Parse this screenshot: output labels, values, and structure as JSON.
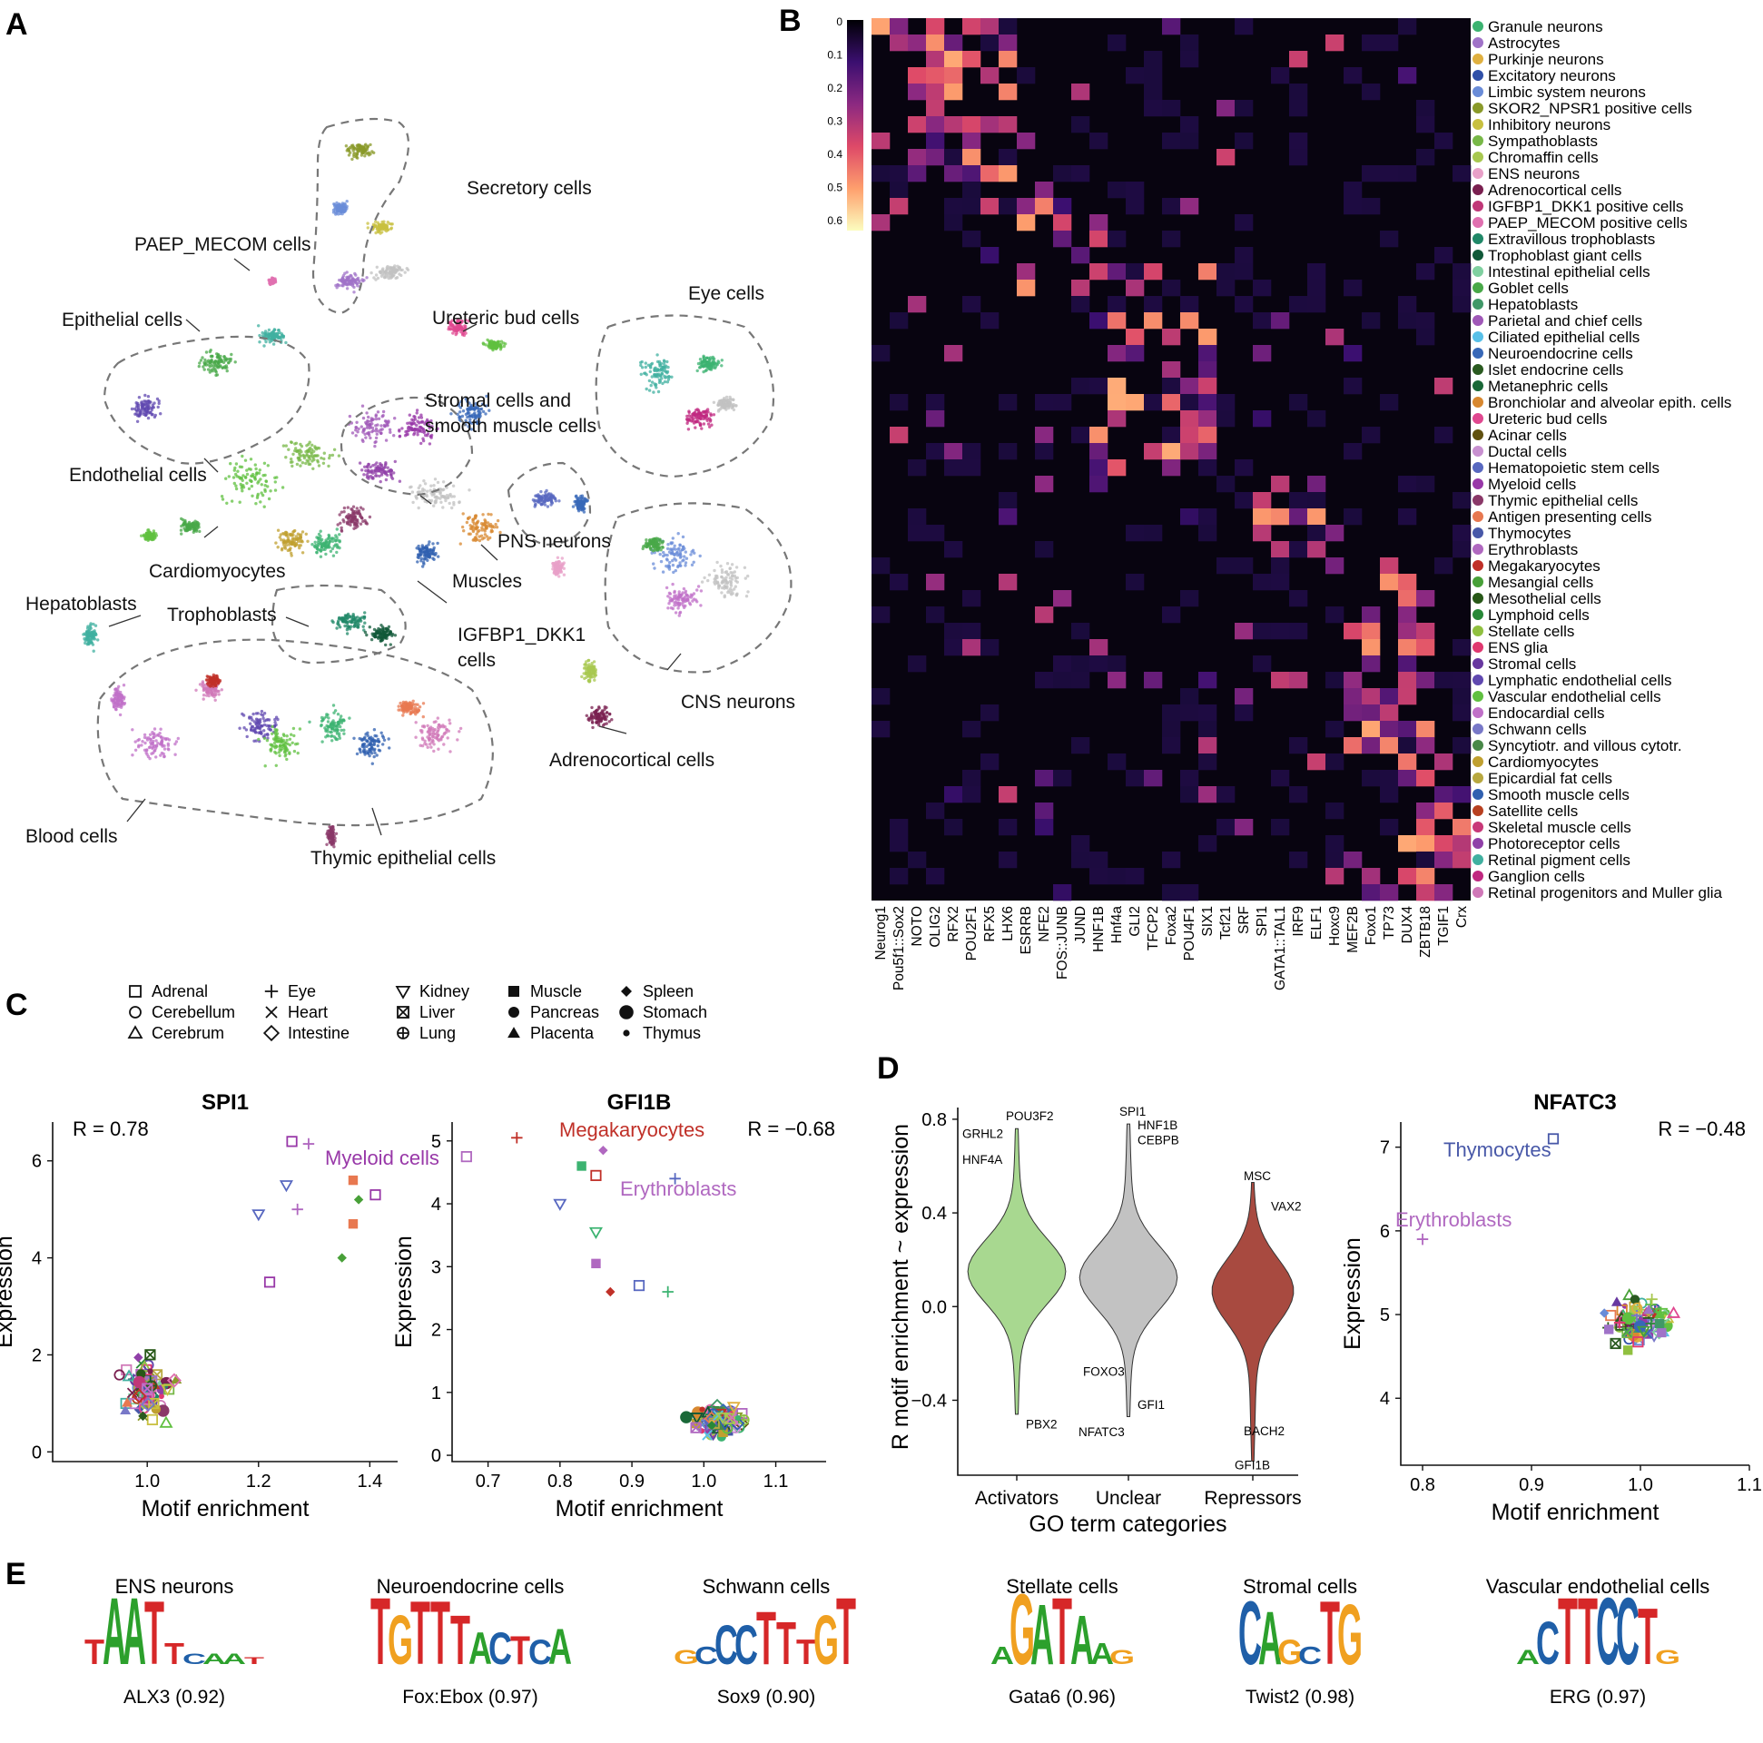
{
  "panel_letters": [
    "A",
    "B",
    "C",
    "D",
    "E"
  ],
  "panel_a": {
    "labels": [
      "Secretory cells",
      "PAEP_MECOM cells",
      "Epithelial cells",
      "Ureteric bud cells",
      "Eye cells",
      "Stromal cells and",
      "smooth muscle cells",
      "Endothelial cells",
      "PNS neurons",
      "Cardiomyocytes",
      "Muscles",
      "Hepatoblasts",
      "Trophoblasts",
      "IGFBP1_DKK1",
      "cells",
      "CNS neurons",
      "Adrenocortical cells",
      "Blood cells",
      "Thymic epithelial cells"
    ]
  },
  "panel_b": {
    "scale_ticks": [
      "0",
      "0.1",
      "0.2",
      "0.3",
      "0.4",
      "0.5",
      "0.6"
    ],
    "tfs": [
      "Neurog1",
      "Pou5f1::Sox2",
      "NOTO",
      "OLIG2",
      "RFX2",
      "POU2F1",
      "RFX5",
      "LHX6",
      "ESRRB",
      "NFE2",
      "FOS::JUNB",
      "JUND",
      "HNF1B",
      "Hnf4a",
      "GLI2",
      "TFCP2",
      "Foxa2",
      "POU4F1",
      "SIX1",
      "Tcf21",
      "SRF",
      "SPI1",
      "GATA1::TAL1",
      "IRF9",
      "ELF1",
      "Hoxc9",
      "MEF2B",
      "Foxo1",
      "TP73",
      "DUX4",
      "ZBTB18",
      "TGIF1",
      "Crx"
    ],
    "cell_types": [
      {
        "name": "Granule neurons",
        "color": "#3cb371"
      },
      {
        "name": "Astrocytes",
        "color": "#a073c8"
      },
      {
        "name": "Purkinje neurons",
        "color": "#e0b040"
      },
      {
        "name": "Excitatory neurons",
        "color": "#3050a8"
      },
      {
        "name": "Limbic system neurons",
        "color": "#6a8cd8"
      },
      {
        "name": "SKOR2_NPSR1 positive cells",
        "color": "#8a9a2a"
      },
      {
        "name": "Inhibitory neurons",
        "color": "#c8c040"
      },
      {
        "name": "Sympathoblasts",
        "color": "#78b848"
      },
      {
        "name": "Chromaffin cells",
        "color": "#a8c850"
      },
      {
        "name": "ENS neurons",
        "color": "#e8a0c8"
      },
      {
        "name": "Adrenocortical cells",
        "color": "#7a2050"
      },
      {
        "name": "IGFBP1_DKK1 positive cells",
        "color": "#c03878"
      },
      {
        "name": "PAEP_MECOM positive cells",
        "color": "#e070b0"
      },
      {
        "name": "Extravillous trophoblasts",
        "color": "#208868"
      },
      {
        "name": "Trophoblast giant cells",
        "color": "#105838"
      },
      {
        "name": "Intestinal epithelial cells",
        "color": "#80d0a0"
      },
      {
        "name": "Goblet cells",
        "color": "#48a848"
      },
      {
        "name": "Hepatoblasts",
        "color": "#409868"
      },
      {
        "name": "Parietal and chief cells",
        "color": "#a058b8"
      },
      {
        "name": "Ciliated epithelial cells",
        "color": "#58c0e8"
      },
      {
        "name": "Neuroendocrine cells",
        "color": "#3868b8"
      },
      {
        "name": "Islet endocrine cells",
        "color": "#2a5a20"
      },
      {
        "name": "Metanephric cells",
        "color": "#1a6838"
      },
      {
        "name": "Bronchiolar and alveolar epith. cells",
        "color": "#d88830"
      },
      {
        "name": "Ureteric bud cells",
        "color": "#e04890"
      },
      {
        "name": "Acinar cells",
        "color": "#605010"
      },
      {
        "name": "Ductal cells",
        "color": "#c890d0"
      },
      {
        "name": "Hematopoietic stem cells",
        "color": "#5868c0"
      },
      {
        "name": "Myeloid cells",
        "color": "#9838a8"
      },
      {
        "name": "Thymic epithelial cells",
        "color": "#8a3868"
      },
      {
        "name": "Antigen presenting cells",
        "color": "#e87850"
      },
      {
        "name": "Thymocytes",
        "color": "#4858a8"
      },
      {
        "name": "Erythroblasts",
        "color": "#b068c0"
      },
      {
        "name": "Megakaryocytes",
        "color": "#c03028"
      },
      {
        "name": "Mesangial cells",
        "color": "#48a038"
      },
      {
        "name": "Mesothelial cells",
        "color": "#285818"
      },
      {
        "name": "Lymphoid cells",
        "color": "#288838"
      },
      {
        "name": "Stellate cells",
        "color": "#90c040"
      },
      {
        "name": "ENS glia",
        "color": "#e03870"
      },
      {
        "name": "Stromal cells",
        "color": "#6838a0"
      },
      {
        "name": "Lymphatic endothelial cells",
        "color": "#6048b0"
      },
      {
        "name": "Vascular endothelial cells",
        "color": "#60c040"
      },
      {
        "name": "Endocardial cells",
        "color": "#c070c8"
      },
      {
        "name": "Schwann cells",
        "color": "#7878c8"
      },
      {
        "name": "Syncytiotr. and villous cytotr.",
        "color": "#488848"
      },
      {
        "name": "Cardiomyocytes",
        "color": "#c0a030"
      },
      {
        "name": "Epicardial fat cells",
        "color": "#b8a840"
      },
      {
        "name": "Smooth muscle cells",
        "color": "#3060b0"
      },
      {
        "name": "Satellite cells",
        "color": "#b84020"
      },
      {
        "name": "Skeletal muscle cells",
        "color": "#c83878"
      },
      {
        "name": "Photoreceptor cells",
        "color": "#9040a8"
      },
      {
        "name": "Retinal pigment cells",
        "color": "#40b0a0"
      },
      {
        "name": "Ganglion cells",
        "color": "#c02880"
      },
      {
        "name": "Retinal progenitors and Muller glia",
        "color": "#d078b8"
      }
    ]
  },
  "panel_c": {
    "legend": [
      {
        "symbol": "square-open",
        "label": "Adrenal"
      },
      {
        "symbol": "circle-open",
        "label": "Cerebellum"
      },
      {
        "symbol": "triangle-open",
        "label": "Cerebrum"
      },
      {
        "symbol": "plus",
        "label": "Eye"
      },
      {
        "symbol": "cross",
        "label": "Heart"
      },
      {
        "symbol": "diamond-open",
        "label": "Intestine"
      },
      {
        "symbol": "triangle-down-open",
        "label": "Kidney"
      },
      {
        "symbol": "square-x",
        "label": "Liver"
      },
      {
        "symbol": "circle-plus",
        "label": "Lung"
      },
      {
        "symbol": "square-filled",
        "label": "Muscle"
      },
      {
        "symbol": "circle-filled",
        "label": "Pancreas"
      },
      {
        "symbol": "triangle-filled",
        "label": "Placenta"
      },
      {
        "symbol": "diamond-filled",
        "label": "Spleen"
      },
      {
        "symbol": "circle-large",
        "label": "Stomach"
      },
      {
        "symbol": "circle-small",
        "label": "Thymus"
      }
    ]
  },
  "chart_data": [
    {
      "type": "scatter",
      "title": "SPI1",
      "xlabel": "Motif enrichment",
      "ylabel": "Expression",
      "xlim": [
        0.83,
        1.45
      ],
      "ylim": [
        -0.2,
        6.8
      ],
      "xticks": [
        "1.0",
        "1.2",
        "1.4"
      ],
      "yticks": [
        "0",
        "2",
        "4",
        "6"
      ],
      "annotation": "R = 0.78",
      "labels": [
        {
          "text": "Myeloid cells",
          "color": "#9838a8"
        }
      ],
      "highlight": [
        [
          1.26,
          6.4
        ],
        [
          1.29,
          6.35
        ],
        [
          1.25,
          5.5
        ],
        [
          1.37,
          5.6
        ],
        [
          1.38,
          5.2
        ],
        [
          1.41,
          5.3
        ],
        [
          1.27,
          5.0
        ],
        [
          1.2,
          4.9
        ],
        [
          1.37,
          4.7
        ],
        [
          1.35,
          4.0
        ],
        [
          1.22,
          3.5
        ]
      ]
    },
    {
      "type": "scatter",
      "title": "GFI1B",
      "xlabel": "Motif enrichment",
      "ylabel": "Expression",
      "xlim": [
        0.65,
        1.17
      ],
      "ylim": [
        -0.1,
        5.3
      ],
      "xticks": [
        "0.7",
        "0.8",
        "0.9",
        "1.0",
        "1.1"
      ],
      "yticks": [
        "0",
        "1",
        "2",
        "3",
        "4",
        "5"
      ],
      "annotation": "R = −0.68",
      "labels": [
        {
          "text": "Megakaryocytes",
          "color": "#c03028"
        },
        {
          "text": "Erythroblasts",
          "color": "#b068c0"
        }
      ],
      "highlight": [
        [
          0.67,
          4.75
        ],
        [
          0.74,
          5.05
        ],
        [
          0.8,
          4.0
        ],
        [
          0.83,
          4.6
        ],
        [
          0.86,
          4.85
        ],
        [
          0.85,
          4.45
        ],
        [
          0.96,
          4.4
        ],
        [
          0.85,
          3.55
        ],
        [
          0.85,
          3.05
        ],
        [
          0.87,
          2.6
        ],
        [
          0.91,
          2.7
        ],
        [
          0.95,
          2.6
        ]
      ]
    },
    {
      "type": "violin",
      "xlabel": "GO term categories",
      "ylabel": "R motif enrichment ~ expression",
      "ylim": [
        -0.72,
        0.85
      ],
      "yticks": [
        "−0.4",
        "0.0",
        "0.4",
        "0.8"
      ],
      "categories": [
        "Activators",
        "Unclear",
        "Repressors"
      ],
      "colors": [
        "#a8d890",
        "#c2c2c2",
        "#a84a40"
      ],
      "ranges": [
        [
          -0.46,
          0.76
        ],
        [
          -0.47,
          0.78
        ],
        [
          -0.66,
          0.53
        ]
      ],
      "annotations": [
        {
          "text": "GRHL2",
          "category": 0,
          "y": 0.72
        },
        {
          "text": "POU3F2",
          "category": 0,
          "y": 0.78
        },
        {
          "text": "HNF4A",
          "category": 0,
          "y": 0.61
        },
        {
          "text": "PBX2",
          "category": 0,
          "y": -0.52
        },
        {
          "text": "SPI1",
          "category": 1,
          "y": 0.8
        },
        {
          "text": "HNF1B",
          "category": 1,
          "y": 0.75
        },
        {
          "text": "CEBPB",
          "category": 1,
          "y": 0.7
        },
        {
          "text": "FOXO3",
          "category": 1,
          "y": -0.28
        },
        {
          "text": "GFI1",
          "category": 1,
          "y": -0.43
        },
        {
          "text": "NFATC3",
          "category": 1,
          "y": -0.53
        },
        {
          "text": "MSC",
          "category": 2,
          "y": 0.54
        },
        {
          "text": "VAX2",
          "category": 2,
          "y": 0.41
        },
        {
          "text": "BACH2",
          "category": 2,
          "y": -0.55
        },
        {
          "text": "GFI1B",
          "category": 2,
          "y": -0.68
        }
      ]
    },
    {
      "type": "scatter",
      "title": "NFATC3",
      "xlabel": "Motif enrichment",
      "ylabel": "Expression",
      "xlim": [
        0.78,
        1.1
      ],
      "ylim": [
        3.2,
        7.3
      ],
      "xticks": [
        "0.8",
        "0.9",
        "1.0",
        "1.1"
      ],
      "yticks": [
        "4",
        "5",
        "6",
        "7"
      ],
      "annotation": "R = −0.48",
      "labels": [
        {
          "text": "Thymocytes",
          "color": "#4858a8"
        },
        {
          "text": "Erythroblasts",
          "color": "#b068c0"
        }
      ],
      "highlight": [
        [
          0.92,
          7.1
        ],
        [
          0.8,
          5.9
        ]
      ]
    }
  ],
  "panel_e": {
    "logos": [
      {
        "title": "ENS neurons",
        "motif": "ALX3 (0.92)"
      },
      {
        "title": "Neuroendocrine cells",
        "motif": "Fox:Ebox (0.97)"
      },
      {
        "title": "Schwann cells",
        "motif": "Sox9 (0.90)"
      },
      {
        "title": "Stellate cells",
        "motif": "Gata6 (0.96)"
      },
      {
        "title": "Stromal cells",
        "motif": "Twist2 (0.98)"
      },
      {
        "title": "Vascular endothelial cells",
        "motif": "ERG (0.97)"
      }
    ]
  }
}
